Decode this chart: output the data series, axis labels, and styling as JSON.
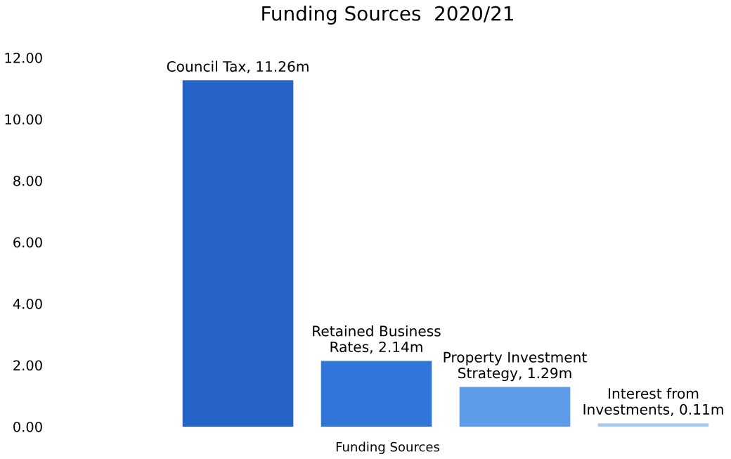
{
  "chart_data": {
    "type": "bar",
    "title": "Funding Sources  2020/21",
    "xlabel": "Funding Sources",
    "categories": [
      null,
      null,
      null,
      null
    ],
    "values": [
      11.26,
      2.14,
      1.29,
      0.11
    ],
    "colors": [
      "#2563c6",
      "#2f76d8",
      "#5c9ce8",
      "#a8cdf2"
    ],
    "value_labels": [
      "Council Tax, 11.26m",
      "Retained Business\nRates, 2.14m",
      "Property Investment\nStrategy, 1.29m",
      "Interest from\nInvestments, 0.11m"
    ],
    "ylim": [
      0,
      12
    ],
    "yticks": [
      {
        "value": 0,
        "label": "0.00"
      },
      {
        "value": 2,
        "label": "2.00"
      },
      {
        "value": 4,
        "label": "4.00"
      },
      {
        "value": 6,
        "label": "6.00"
      },
      {
        "value": 8,
        "label": "8.00"
      },
      {
        "value": 10,
        "label": "10.00"
      },
      {
        "value": 12,
        "label": "12.00"
      }
    ],
    "grid": false
  }
}
